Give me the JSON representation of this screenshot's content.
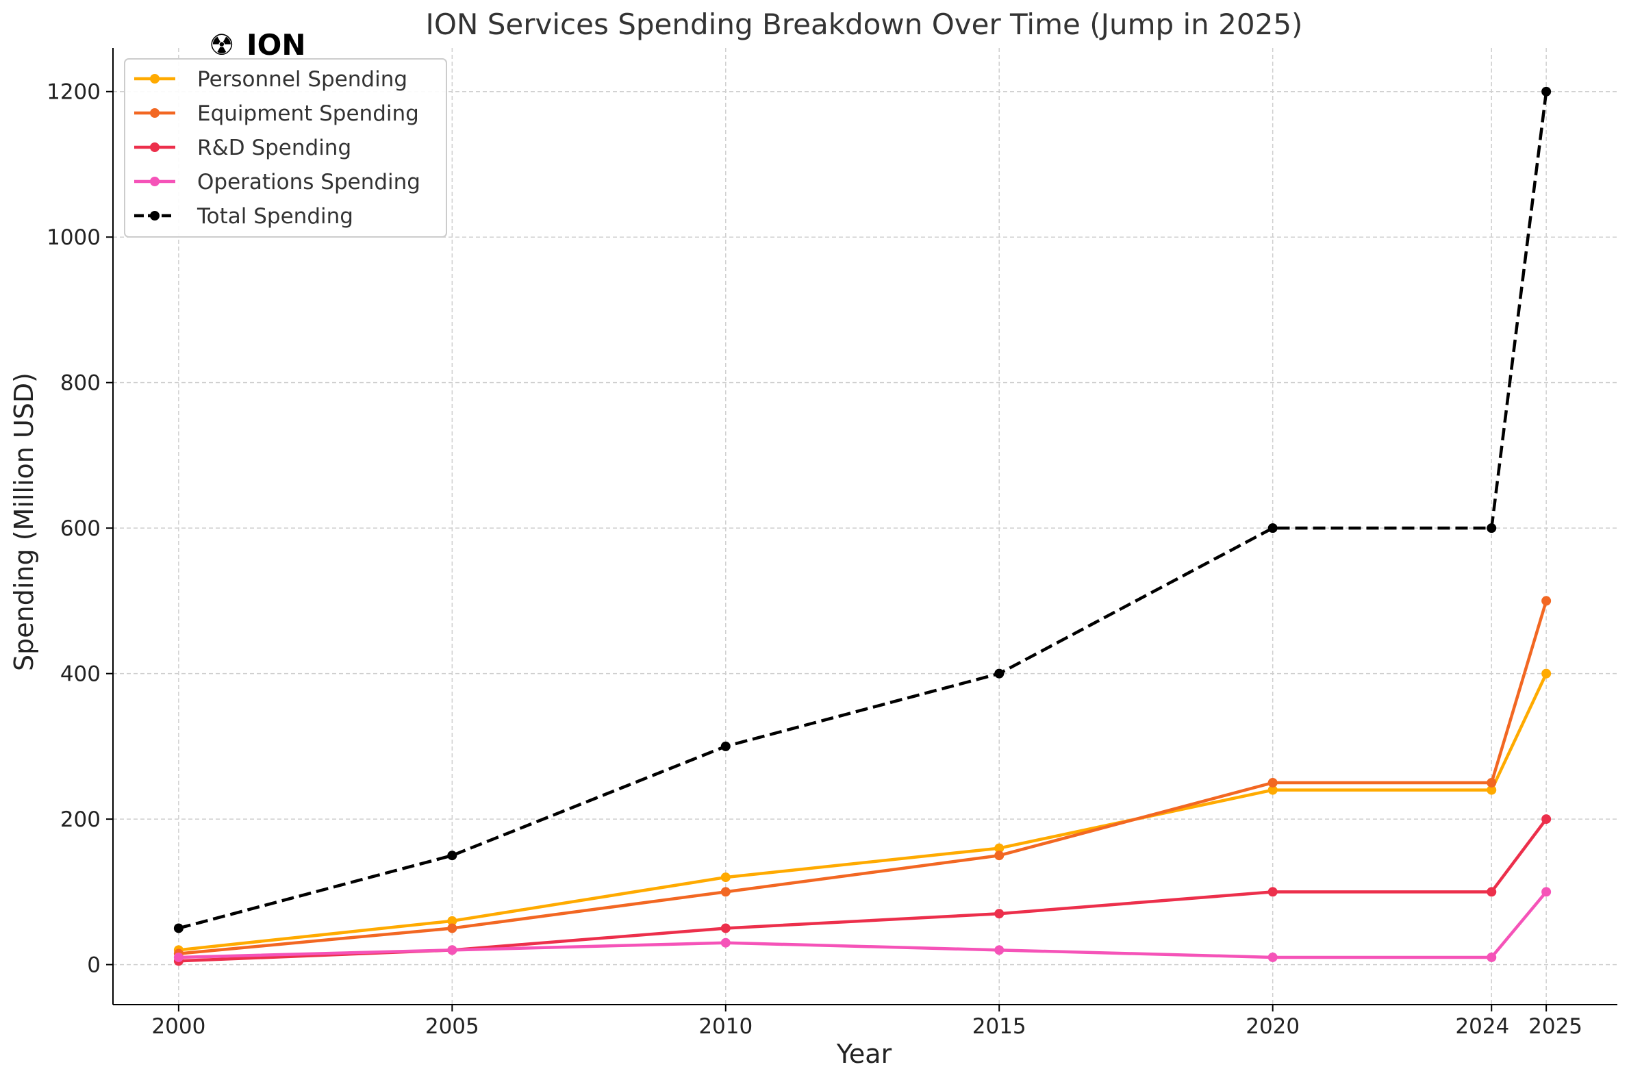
{
  "logo": {
    "symbol": "☢",
    "text": "ION"
  },
  "chart_data": {
    "type": "line",
    "title": "ION Services Spending Breakdown Over Time (Jump in 2025)",
    "xlabel": "Year",
    "ylabel": "Spending (Million USD)",
    "x": [
      2000,
      2005,
      2010,
      2015,
      2020,
      2024,
      2025
    ],
    "xticks": [
      "2000",
      "2005",
      "2010",
      "2015",
      "2020",
      "2024",
      "2025"
    ],
    "yticks": [
      0,
      200,
      400,
      600,
      800,
      1000,
      1200
    ],
    "xlim": [
      1998.8,
      2026.3
    ],
    "ylim": [
      -55,
      1260
    ],
    "grid": true,
    "legend_position": "top-left",
    "series": [
      {
        "name": "Personnel Spending",
        "color": "#FFAA00",
        "style": "solid",
        "values": [
          20,
          60,
          120,
          160,
          240,
          240,
          400
        ]
      },
      {
        "name": "Equipment Spending",
        "color": "#F26722",
        "style": "solid",
        "values": [
          15,
          50,
          100,
          150,
          250,
          250,
          500
        ]
      },
      {
        "name": "R&D Spending",
        "color": "#EC2F4B",
        "style": "solid",
        "values": [
          5,
          20,
          50,
          70,
          100,
          100,
          200
        ]
      },
      {
        "name": "Operations Spending",
        "color": "#F553B8",
        "style": "solid",
        "values": [
          10,
          20,
          30,
          20,
          10,
          10,
          100
        ]
      },
      {
        "name": "Total Spending",
        "color": "#000000",
        "style": "dashed",
        "values": [
          50,
          150,
          300,
          400,
          600,
          600,
          1200
        ]
      }
    ]
  }
}
